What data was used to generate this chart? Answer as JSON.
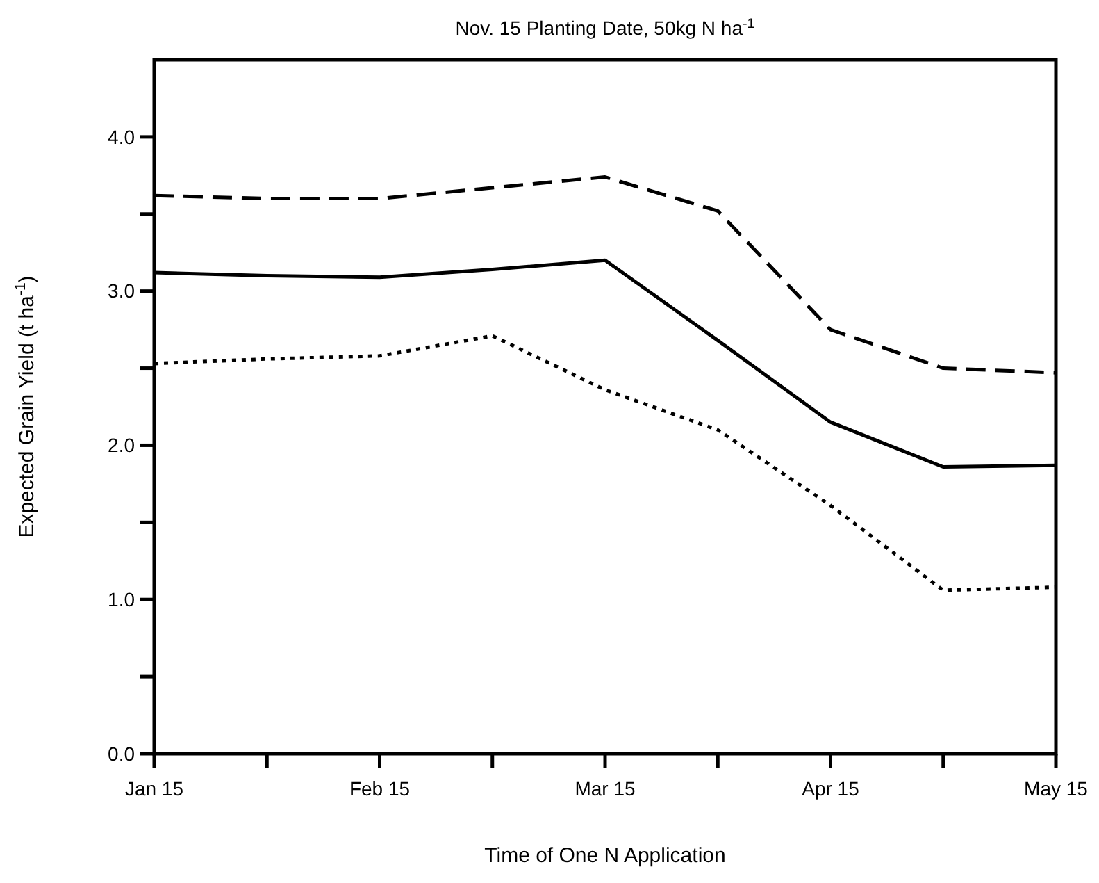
{
  "chart_data": {
    "type": "line",
    "title": "Nov. 15 Planting Date, 50kg N ha$^{-1}$",
    "xlabel": "Time of One N Application",
    "ylabel": "Expected Grain Yield (t ha$^{-1}$)",
    "categories": [
      "Jan 15",
      null,
      "Feb 15",
      null,
      "Mar 15",
      null,
      "Apr 15",
      null,
      "May 15"
    ],
    "series": [
      {
        "color": "#000000",
        "line_style": "dashed",
        "values": [
          3.62,
          3.6,
          3.6,
          3.67,
          3.74,
          3.52,
          2.75,
          2.5,
          2.47
        ]
      },
      {
        "color": "#000000",
        "line_style": "solid",
        "values": [
          3.12,
          3.1,
          3.09,
          3.14,
          3.2,
          2.68,
          2.15,
          1.86,
          1.87
        ]
      },
      {
        "color": "#000000",
        "line_style": "dotted",
        "values": [
          2.53,
          2.56,
          2.58,
          2.71,
          2.36,
          2.1,
          1.61,
          1.06,
          1.08
        ]
      }
    ],
    "ylim": [
      0,
      4.5
    ],
    "yticks": [
      {
        "value": 0,
        "label": "0.0"
      },
      {
        "value": 0.5,
        "label": null
      },
      {
        "value": 1,
        "label": "1.0"
      },
      {
        "value": 1.5,
        "label": null
      },
      {
        "value": 2,
        "label": "2.0"
      },
      {
        "value": 2.5,
        "label": null
      },
      {
        "value": 3,
        "label": "3.0"
      },
      {
        "value": 3.5,
        "label": null
      },
      {
        "value": 4,
        "label": "4.0"
      }
    ],
    "grid": false
  }
}
